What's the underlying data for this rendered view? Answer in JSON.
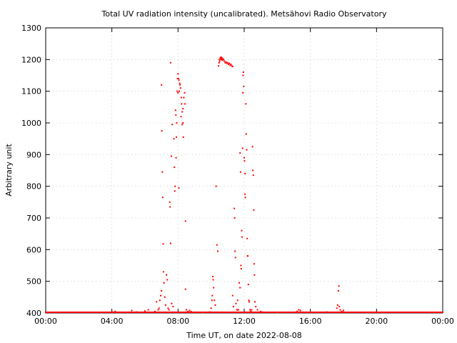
{
  "chart_data": {
    "type": "scatter",
    "title": "Total UV radiation intensity (uncalibrated). Metsähovi Radio Observatory",
    "xlabel": "Time UT, on date 2022-08-08",
    "ylabel": "Arbitrary unit",
    "xlim_hours": [
      0,
      24
    ],
    "ylim": [
      400,
      1300
    ],
    "x_ticks": [
      {
        "value": 0,
        "label": "00:00"
      },
      {
        "value": 4,
        "label": "04:00"
      },
      {
        "value": 8,
        "label": "08:00"
      },
      {
        "value": 12,
        "label": "12:00"
      },
      {
        "value": 16,
        "label": "16:00"
      },
      {
        "value": 20,
        "label": "20:00"
      },
      {
        "value": 24,
        "label": "00:00"
      }
    ],
    "y_ticks": [
      400,
      500,
      600,
      700,
      800,
      900,
      1000,
      1100,
      1200,
      1300
    ],
    "grid": true,
    "point_color": "#ff0000",
    "baseline": {
      "x_start": 0,
      "x_end": 24,
      "step": 0.04,
      "y": 400
    },
    "series": [
      {
        "points": [
          [
            4.0,
            403
          ],
          [
            4.2,
            405
          ],
          [
            4.5,
            402
          ],
          [
            5.2,
            408
          ],
          [
            5.5,
            403
          ],
          [
            6.0,
            406
          ],
          [
            6.2,
            410
          ],
          [
            6.6,
            405
          ],
          [
            6.7,
            435
          ],
          [
            6.8,
            410
          ],
          [
            6.85,
            415
          ],
          [
            6.9,
            440
          ],
          [
            6.95,
            455
          ],
          [
            7.0,
            470
          ],
          [
            7.0,
            1120
          ],
          [
            7.02,
            975
          ],
          [
            7.05,
            845
          ],
          [
            7.07,
            765
          ],
          [
            7.1,
            618
          ],
          [
            7.12,
            530
          ],
          [
            7.15,
            495
          ],
          [
            7.2,
            450
          ],
          [
            7.25,
            425
          ],
          [
            7.3,
            520
          ],
          [
            7.35,
            505
          ],
          [
            7.4,
            415
          ],
          [
            7.45,
            410
          ],
          [
            7.5,
            750
          ],
          [
            7.52,
            735
          ],
          [
            7.55,
            620
          ],
          [
            7.55,
            1190
          ],
          [
            7.6,
            895
          ],
          [
            7.62,
            430
          ],
          [
            7.65,
            995
          ],
          [
            7.7,
            420
          ],
          [
            7.75,
            950
          ],
          [
            7.78,
            860
          ],
          [
            7.8,
            785
          ],
          [
            7.82,
            800
          ],
          [
            7.85,
            1040
          ],
          [
            7.87,
            1025
          ],
          [
            7.88,
            890
          ],
          [
            7.9,
            955
          ],
          [
            7.92,
            1000
          ],
          [
            7.95,
            1100
          ],
          [
            7.97,
            1140
          ],
          [
            8.0,
            1155
          ],
          [
            8.0,
            1095
          ],
          [
            8.02,
            1140
          ],
          [
            8.05,
            1135
          ],
          [
            8.05,
            795
          ],
          [
            8.07,
            1100
          ],
          [
            8.1,
            1125
          ],
          [
            8.12,
            1120
          ],
          [
            8.15,
            1110
          ],
          [
            8.18,
            1020
          ],
          [
            8.2,
            1080
          ],
          [
            8.22,
            1060
          ],
          [
            8.25,
            1035
          ],
          [
            8.25,
            995
          ],
          [
            8.3,
            1045
          ],
          [
            8.3,
            1000
          ],
          [
            8.32,
            955
          ],
          [
            8.35,
            1080
          ],
          [
            8.4,
            1095
          ],
          [
            8.42,
            1060
          ],
          [
            8.45,
            690
          ],
          [
            8.45,
            475
          ],
          [
            8.5,
            410
          ],
          [
            8.6,
            405
          ],
          [
            8.7,
            408
          ],
          [
            8.8,
            404
          ],
          [
            9.0,
            402
          ],
          [
            9.5,
            401
          ],
          [
            9.9,
            403
          ],
          [
            10.0,
            415
          ],
          [
            10.05,
            440
          ],
          [
            10.07,
            455
          ],
          [
            10.1,
            515
          ],
          [
            10.12,
            505
          ],
          [
            10.15,
            480
          ],
          [
            10.2,
            440
          ],
          [
            10.25,
            425
          ],
          [
            10.3,
            800
          ],
          [
            10.35,
            615
          ],
          [
            10.4,
            595
          ],
          [
            10.45,
            1180
          ],
          [
            10.48,
            1190
          ],
          [
            10.5,
            1200
          ],
          [
            10.52,
            1195
          ],
          [
            10.55,
            1205
          ],
          [
            10.58,
            1202
          ],
          [
            10.6,
            1208
          ],
          [
            10.62,
            1200
          ],
          [
            10.65,
            1205
          ],
          [
            10.68,
            1198
          ],
          [
            10.7,
            1202
          ],
          [
            10.75,
            1200
          ],
          [
            10.8,
            1195
          ],
          [
            10.85,
            1190
          ],
          [
            10.9,
            1192
          ],
          [
            10.95,
            1188
          ],
          [
            11.0,
            1190
          ],
          [
            11.05,
            1185
          ],
          [
            11.1,
            1188
          ],
          [
            11.15,
            1182
          ],
          [
            11.2,
            1185
          ],
          [
            11.25,
            1180
          ],
          [
            11.3,
            1178
          ],
          [
            11.3,
            455
          ],
          [
            11.35,
            420
          ],
          [
            11.4,
            730
          ],
          [
            11.42,
            700
          ],
          [
            11.45,
            595
          ],
          [
            11.47,
            575
          ],
          [
            11.5,
            430
          ],
          [
            11.55,
            410
          ],
          [
            11.6,
            440
          ],
          [
            11.62,
            410
          ],
          [
            11.65,
            410
          ],
          [
            11.7,
            495
          ],
          [
            11.75,
            480
          ],
          [
            11.75,
            905
          ],
          [
            11.78,
            845
          ],
          [
            11.8,
            550
          ],
          [
            11.82,
            540
          ],
          [
            11.85,
            660
          ],
          [
            11.87,
            640
          ],
          [
            11.9,
            920
          ],
          [
            11.92,
            1095
          ],
          [
            11.93,
            1150
          ],
          [
            11.95,
            1160
          ],
          [
            11.97,
            1115
          ],
          [
            12.0,
            890
          ],
          [
            12.02,
            880
          ],
          [
            12.05,
            840
          ],
          [
            12.05,
            775
          ],
          [
            12.07,
            765
          ],
          [
            12.1,
            1060
          ],
          [
            12.12,
            965
          ],
          [
            12.15,
            915
          ],
          [
            12.18,
            635
          ],
          [
            12.2,
            580
          ],
          [
            12.22,
            580
          ],
          [
            12.25,
            490
          ],
          [
            12.28,
            440
          ],
          [
            12.3,
            435
          ],
          [
            12.35,
            410
          ],
          [
            12.4,
            405
          ],
          [
            12.45,
            410
          ],
          [
            12.5,
            925
          ],
          [
            12.52,
            850
          ],
          [
            12.55,
            835
          ],
          [
            12.58,
            725
          ],
          [
            12.6,
            555
          ],
          [
            12.62,
            520
          ],
          [
            12.65,
            435
          ],
          [
            12.7,
            420
          ],
          [
            12.8,
            410
          ],
          [
            13.0,
            405
          ],
          [
            13.5,
            402
          ],
          [
            14.0,
            401
          ],
          [
            15.2,
            405
          ],
          [
            15.3,
            410
          ],
          [
            15.4,
            408
          ],
          [
            16.5,
            402
          ],
          [
            17.0,
            403
          ],
          [
            17.6,
            415
          ],
          [
            17.65,
            425
          ],
          [
            17.7,
            470
          ],
          [
            17.72,
            485
          ],
          [
            17.75,
            420
          ],
          [
            17.8,
            410
          ],
          [
            17.9,
            405
          ],
          [
            18.0,
            408
          ],
          [
            18.2,
            402
          ],
          [
            19.5,
            402
          ],
          [
            20.0,
            403
          ]
        ]
      }
    ]
  }
}
